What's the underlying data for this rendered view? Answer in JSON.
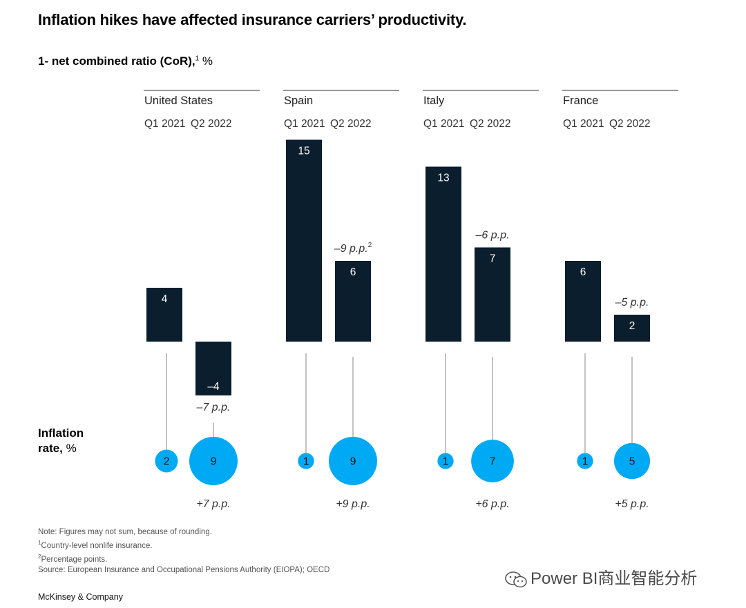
{
  "title": "Inflation hikes have affected insurance carriers’ productivity.",
  "subtitle": {
    "text": "1- net combined ratio (CoR),",
    "sup": "1",
    "unit": "%"
  },
  "inflation_label": {
    "line1": "Inflation",
    "line2": "rate,",
    "unit": "%"
  },
  "notes": {
    "note": "Note: Figures may not sum, because of rounding.",
    "footnote1": "Country-level nonlife insurance.",
    "footnote2": "Percentage points.",
    "source": "Source: European Insurance and Occupational Pensions Authority (EIOPA); OECD"
  },
  "brand": "McKinsey & Company",
  "watermark": "Power BI商业智能分析",
  "colors": {
    "bar": "#0b1e2d",
    "bubble": "#00a9f4",
    "line": "#9a9a9a",
    "text": "#333333"
  },
  "chart_data": {
    "type": "bar",
    "categories": [
      "Q1 2021",
      "Q2 2022"
    ],
    "series": [
      {
        "name": "United States",
        "cor_values": [
          4,
          -4
        ],
        "cor_change": "–7 p.p.",
        "inflation_values": [
          2,
          9
        ],
        "inflation_change": "+7 p.p."
      },
      {
        "name": "Spain",
        "cor_values": [
          15,
          6
        ],
        "cor_change": "–9 p.p.",
        "cor_change_sup": "2",
        "inflation_values": [
          1,
          9
        ],
        "inflation_change": "+9 p.p."
      },
      {
        "name": "Italy",
        "cor_values": [
          13,
          7
        ],
        "cor_change": "–6 p.p.",
        "inflation_values": [
          1,
          7
        ],
        "inflation_change": "+6 p.p."
      },
      {
        "name": "France",
        "cor_values": [
          6,
          2
        ],
        "cor_change": "–5 p.p.",
        "inflation_values": [
          1,
          5
        ],
        "inflation_change": "+5 p.p."
      }
    ]
  }
}
